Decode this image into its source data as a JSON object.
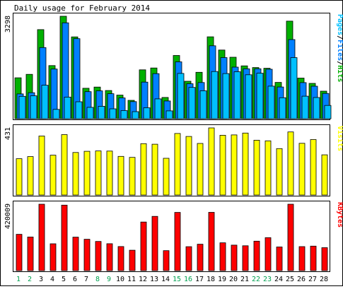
{
  "chart_data": {
    "type": "bar",
    "title": "Daily usage for February 2014",
    "categories": [
      "1",
      "2",
      "3",
      "4",
      "5",
      "6",
      "7",
      "8",
      "9",
      "10",
      "11",
      "12",
      "13",
      "14",
      "15",
      "16",
      "17",
      "18",
      "19",
      "20",
      "21",
      "22",
      "23",
      "24",
      "25",
      "26",
      "27",
      "28"
    ],
    "weekend_days": [
      1,
      2,
      8,
      9,
      15,
      16,
      22,
      23
    ],
    "colors": {
      "pages": "#00c0ff",
      "files": "#0080ff",
      "hits": "#00b000",
      "visits": "#ffff00",
      "kbytes": "#ff0000",
      "weekday_label": "#000000",
      "weekend_label": "#00a050",
      "panel_bg": "#ffffff",
      "outer_bg": "#ffffff"
    },
    "panels": [
      {
        "id": "hits-panel",
        "max_label": "3298",
        "side_label_parts": [
          {
            "text": "Pages",
            "color": "#00c0ff"
          },
          {
            "text": "/",
            "color": "#000000"
          },
          {
            "text": "Files",
            "color": "#0080ff"
          },
          {
            "text": "/",
            "color": "#000000"
          },
          {
            "text": "Hits",
            "color": "#00b000"
          }
        ],
        "max_value": 3298,
        "series": [
          {
            "key": "hits",
            "values": [
              1317,
              1428,
              2868,
              1710,
              3298,
              2633,
              981,
              1018,
              907,
              759,
              592,
              1573,
              1632,
              685,
              2036,
              1206,
              1494,
              2637,
              2211,
              1978,
              1701,
              1647,
              1623,
              1169,
              3142,
              1308,
              1137,
              888
            ]
          },
          {
            "key": "files",
            "values": [
              798,
              836,
              2290,
              1598,
              3086,
              2578,
              870,
              897,
              806,
              668,
              551,
              1179,
              1452,
              571,
              1832,
              1125,
              1164,
              2348,
              1968,
              1661,
              1606,
              1607,
              1593,
              1022,
              2548,
              1162,
              1046,
              815
            ]
          },
          {
            "key": "pages",
            "values": [
              720,
              736,
              1078,
              301,
              695,
              545,
              367,
              400,
              318,
              262,
              227,
              353,
              640,
              253,
              1458,
              1007,
              898,
              1519,
              1453,
              1512,
              1414,
              1464,
              1048,
              676,
              1968,
              726,
              682,
              427
            ]
          }
        ]
      },
      {
        "id": "visits-panel",
        "max_label": "431",
        "side_label_parts": [
          {
            "text": "Visits",
            "color": "#ffff00"
          }
        ],
        "max_value": 431,
        "series": [
          {
            "key": "visits",
            "values": [
              233,
              247,
              379,
              256,
              388,
              273,
              281,
              283,
              282,
              248,
              242,
              330,
              326,
              236,
              395,
              376,
              331,
              431,
              384,
              386,
              398,
              352,
              348,
              298,
              405,
              332,
              356,
              258
            ]
          }
        ]
      },
      {
        "id": "kbytes-panel",
        "max_label": "420009",
        "side_label_parts": [
          {
            "text": "KBytes",
            "color": "#ff0000"
          }
        ],
        "max_value": 420009,
        "series": [
          {
            "key": "kbytes",
            "values": [
              229456,
              212478,
              420009,
              169765,
              414200,
              211898,
              198435,
              184420,
              170050,
              152316,
              129014,
              307488,
              343089,
              126488,
              368002,
              151620,
              167312,
              368810,
              175900,
              161520,
              157214,
              186120,
              208732,
              149550,
              420009,
              151700,
              154920,
              145200
            ]
          }
        ]
      }
    ]
  }
}
